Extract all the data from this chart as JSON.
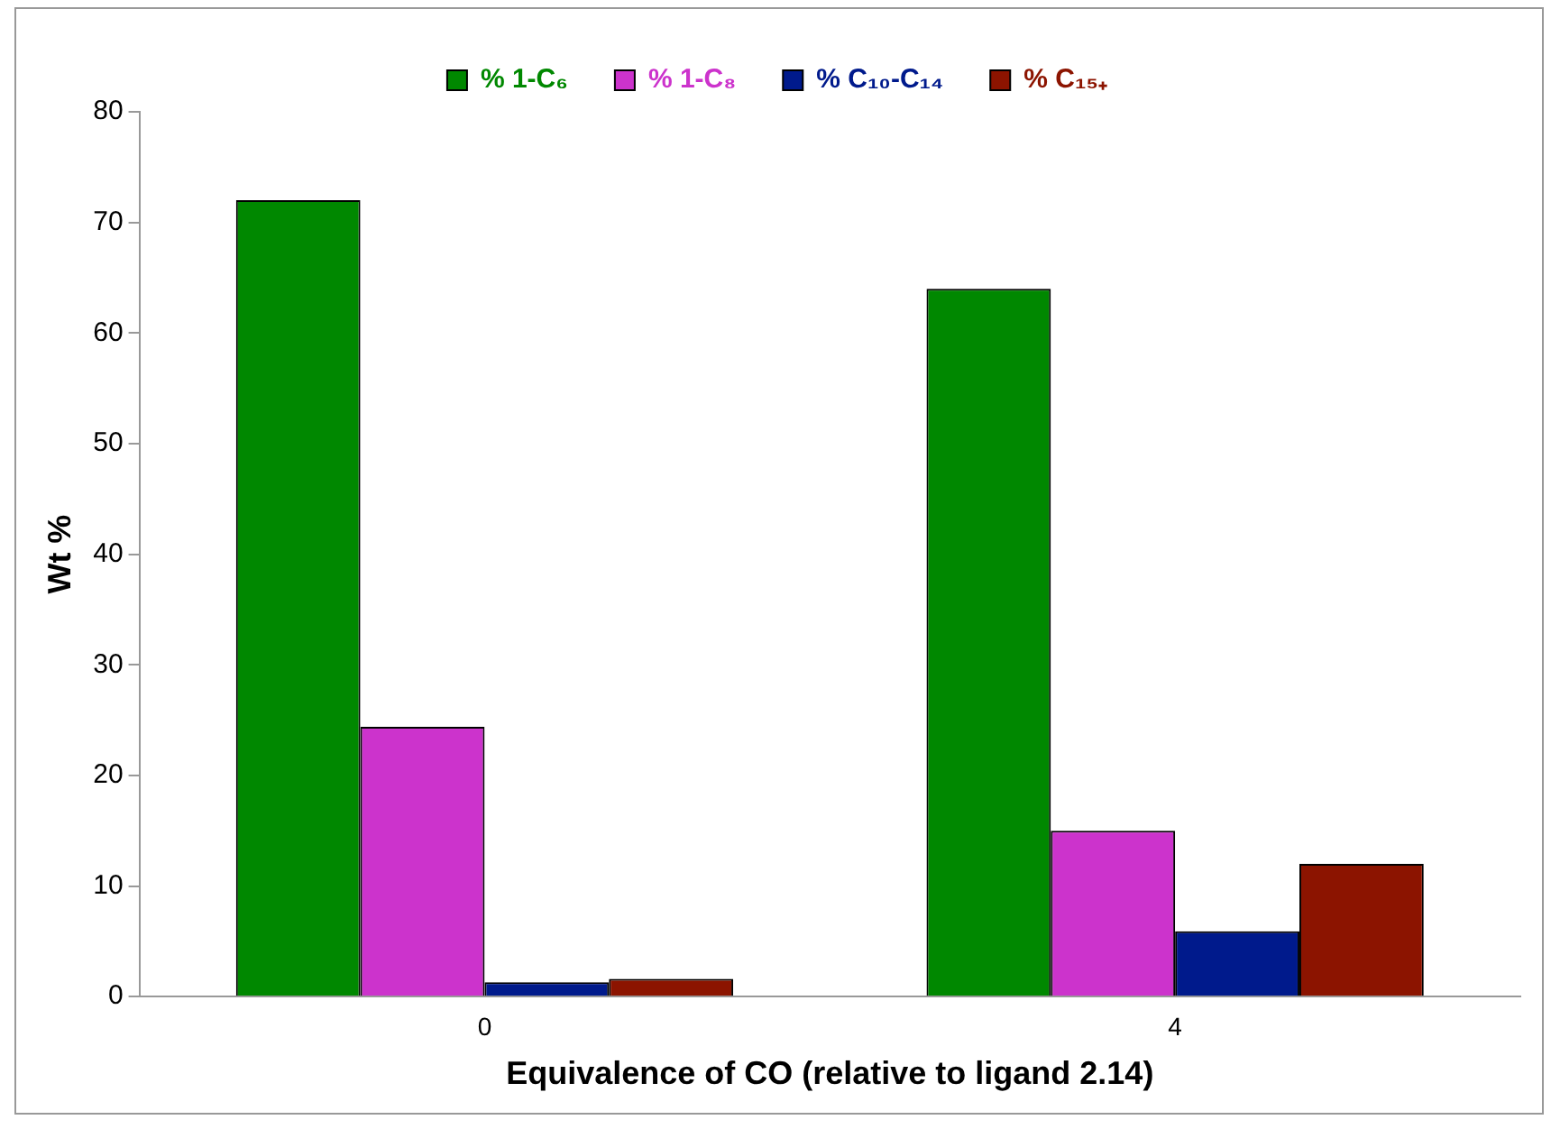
{
  "chart_data": {
    "type": "bar",
    "categories": [
      "0",
      "4"
    ],
    "series": [
      {
        "name": "% 1-C₆",
        "color": "#008800",
        "values": [
          72,
          64
        ]
      },
      {
        "name": "% 1-C₈",
        "color": "#cc33cc",
        "values": [
          24.4,
          15
        ]
      },
      {
        "name": "% C₁₀-C₁₄",
        "color": "#001a8c",
        "values": [
          1.3,
          5.9
        ]
      },
      {
        "name": "% C₁₅₊",
        "color": "#8c1400",
        "values": [
          1.6,
          12
        ]
      }
    ],
    "xlabel": "Equivalence of CO (relative to ligand 2.14)",
    "ylabel": "Wt %",
    "ylim": [
      0,
      80
    ],
    "yticks": [
      0,
      10,
      20,
      30,
      40,
      50,
      60,
      70,
      80
    ],
    "grid": false,
    "legend": "top"
  }
}
